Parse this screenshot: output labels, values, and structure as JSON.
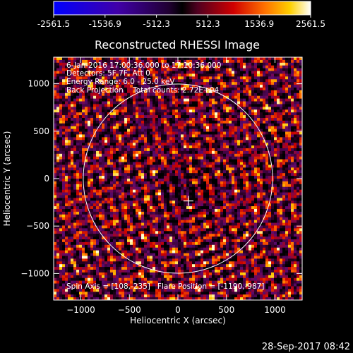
{
  "chart_data": {
    "type": "heatmap",
    "title": "Reconstructed RHESSI Image",
    "xlabel": "Heliocentric X (arcsec)",
    "ylabel": "Heliocentric Y (arcsec)",
    "xlim": [
      -1280,
      1280
    ],
    "ylim": [
      -1280,
      1280
    ],
    "xticks": [
      -1000,
      -500,
      0,
      500,
      1000
    ],
    "yticks": [
      -1000,
      -500,
      0,
      500,
      1000
    ],
    "colorbar": {
      "min": -2561.5,
      "max": 2561.5,
      "tick_labels": [
        "-2561.5",
        "-1536.9",
        "-512.3",
        "512.3",
        "1536.9",
        "2561.5"
      ]
    },
    "annotations": [
      "6-Jan-2016 17:00:36.000 to 17:10:36.000",
      "Detectors: 5F 7F, Att 0",
      "Energy Range: 6.0 - 25.0 keV",
      "Back Projection    Total counts: 2.72E+04"
    ],
    "footer_annotation": "Spin Axis = [108,-235]   Flare Position = [-1190,-987]",
    "solar_limb_radius": 975,
    "spin_axis": [
      108,
      -235
    ],
    "flare_position": [
      -1190,
      -987
    ]
  },
  "timestamp": "28-Sep-2017 08:42",
  "colors": {
    "background": "#000000",
    "foreground": "#ffffff"
  }
}
